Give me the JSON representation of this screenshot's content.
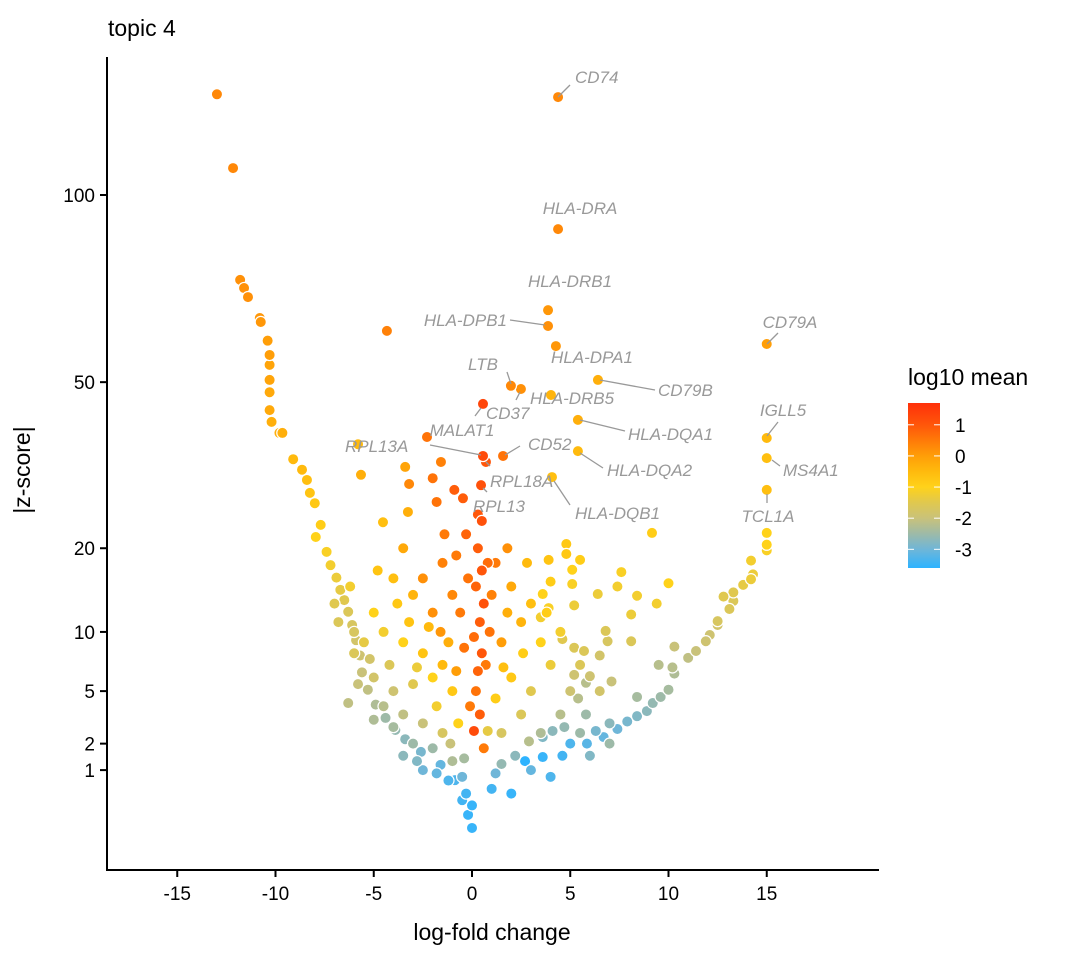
{
  "chart_data": {
    "type": "scatter",
    "title": "topic 4",
    "xlabel": "log-fold change",
    "ylabel": "|z-score|",
    "x_ticks": [
      -15,
      -10,
      -5,
      0,
      5,
      10,
      15
    ],
    "y_ticks": [
      1,
      2,
      5,
      10,
      20,
      50,
      100
    ],
    "y_scale": "sqrt",
    "xlim": [
      -18.6,
      20.7
    ],
    "ylim": [
      0,
      150
    ],
    "grid": false,
    "legend": {
      "title": "log10 mean",
      "placement": "right",
      "ticks": [
        1,
        0,
        -1,
        -2,
        -3
      ],
      "range": [
        -3.6,
        1.7
      ]
    },
    "color_scale": [
      {
        "value": -3.6,
        "color": "#2DB3FF"
      },
      {
        "value": -3.0,
        "color": "#6FB6D8"
      },
      {
        "value": -2.5,
        "color": "#9DBAA8"
      },
      {
        "value": -2.0,
        "color": "#C9C27A"
      },
      {
        "value": -1.5,
        "color": "#E0C84F"
      },
      {
        "value": -1.0,
        "color": "#FFD21A"
      },
      {
        "value": -0.5,
        "color": "#FFBA0D"
      },
      {
        "value": 0.0,
        "color": "#FF9E08"
      },
      {
        "value": 0.5,
        "color": "#FF7A08"
      },
      {
        "value": 1.0,
        "color": "#FF560A"
      },
      {
        "value": 1.7,
        "color": "#FF300A"
      }
    ],
    "labeled_points": [
      {
        "gene": "CD74",
        "x": 4.38,
        "z": 133,
        "log10_mean": 0.3
      },
      {
        "gene": "HLA-DRA",
        "x": 4.38,
        "z": 89.6,
        "log10_mean": 0.3
      },
      {
        "gene": "HLA-DRB1",
        "x": 3.87,
        "z": 67.2,
        "log10_mean": 0.1
      },
      {
        "gene": "HLA-DPB1",
        "x": 3.87,
        "z": 63.2,
        "log10_mean": 0.2
      },
      {
        "gene": "HLA-DPA1",
        "x": 4.27,
        "z": 58.3,
        "log10_mean": 0.1
      },
      {
        "gene": "CD79A",
        "x": 15.0,
        "z": 58.8,
        "log10_mean": 0.0
      },
      {
        "gene": "CD79B",
        "x": 6.41,
        "z": 50.5,
        "log10_mean": -0.3
      },
      {
        "gene": "LTB",
        "x": 1.98,
        "z": 49.2,
        "log10_mean": 0.3
      },
      {
        "gene": "HLA-DRB5",
        "x": 2.49,
        "z": 48.5,
        "log10_mean": 0.2
      },
      {
        "gene": "CD37",
        "x": 0.56,
        "z": 45.3,
        "log10_mean": 1.3
      },
      {
        "gene": "HLA-DQA1",
        "x": 5.39,
        "z": 42.0,
        "log10_mean": -0.3
      },
      {
        "gene": "MALAT1",
        "x": -2.29,
        "z": 38.6,
        "log10_mean": 0.6
      },
      {
        "gene": "IGLL5",
        "x": 15.0,
        "z": 38.4,
        "log10_mean": -0.5
      },
      {
        "gene": "RPL13A",
        "x": 0.56,
        "z": 35.0,
        "log10_mean": 1.2
      },
      {
        "gene": "CD52",
        "x": 1.58,
        "z": 35.0,
        "log10_mean": 0.6
      },
      {
        "gene": "HLA-DQA2",
        "x": 5.39,
        "z": 35.9,
        "log10_mean": -0.5
      },
      {
        "gene": "MS4A1",
        "x": 15.0,
        "z": 34.6,
        "log10_mean": -0.6
      },
      {
        "gene": "RPL18A",
        "x": 0.71,
        "z": 33.9,
        "log10_mean": 1.0
      },
      {
        "gene": "HLA-DQB1",
        "x": 4.07,
        "z": 31.2,
        "log10_mean": -0.6
      },
      {
        "gene": "RPL13",
        "x": 0.46,
        "z": 29.8,
        "log10_mean": 1.1
      },
      {
        "gene": "TCL1A",
        "x": 15.0,
        "z": 29.0,
        "log10_mean": -0.6
      }
    ],
    "points": [
      [
        -12.98,
        134,
        0.3
      ],
      [
        -12.16,
        108.6,
        0.3
      ],
      [
        -4.33,
        62,
        0.4
      ],
      [
        4.02,
        47.2,
        -0.4
      ],
      [
        -11.8,
        75.2,
        0.2
      ],
      [
        -11.6,
        73,
        0.2
      ],
      [
        -11.4,
        70.6,
        0.2
      ],
      [
        -10.8,
        65.2,
        0.1
      ],
      [
        -10.75,
        64.2,
        0.1
      ],
      [
        -10.4,
        59.6,
        0.0
      ],
      [
        -10.3,
        56.2,
        0.0
      ],
      [
        -10.3,
        53.9,
        -0.1
      ],
      [
        -10.3,
        50.5,
        -0.1
      ],
      [
        -10.3,
        47.8,
        -0.2
      ],
      [
        -10.3,
        44.0,
        -0.2
      ],
      [
        -10.2,
        41.6,
        -0.3
      ],
      [
        -9.8,
        39.4,
        -0.3
      ],
      [
        -9.65,
        39.4,
        -0.3
      ],
      [
        -9.1,
        34.4,
        -0.5
      ],
      [
        -8.65,
        32.5,
        -0.5
      ],
      [
        -8.4,
        30.7,
        -0.6
      ],
      [
        -8.25,
        28.5,
        -0.7
      ],
      [
        -8.0,
        26.8,
        -0.8
      ],
      [
        -7.7,
        23.4,
        -0.9
      ],
      [
        -7.95,
        21.6,
        -1.0
      ],
      [
        -7.4,
        19.5,
        -1.1
      ],
      [
        -7.2,
        17.7,
        -1.2
      ],
      [
        -6.9,
        16.1,
        -1.3
      ],
      [
        -6.7,
        14.6,
        -1.4
      ],
      [
        -6.5,
        13.4,
        -1.5
      ],
      [
        -6.3,
        12.1,
        -1.6
      ],
      [
        -6.1,
        10.7,
        -1.7
      ],
      [
        -5.9,
        9.2,
        -1.8
      ],
      [
        -5.7,
        7.8,
        -1.9
      ],
      [
        -5.6,
        6.4,
        -2.0
      ],
      [
        -5.3,
        5.1,
        -2.1
      ],
      [
        -4.9,
        4.1,
        -2.3
      ],
      [
        -4.4,
        3.3,
        -2.5
      ],
      [
        -3.9,
        2.65,
        -2.6
      ],
      [
        -3.4,
        2.2,
        -2.7
      ],
      [
        -2.6,
        1.65,
        -2.9
      ],
      [
        -1.6,
        1.17,
        -3.1
      ],
      [
        -0.87,
        0.71,
        -3.3
      ],
      [
        -0.5,
        0.28,
        -3.4
      ],
      [
        -0.2,
        0.09,
        -3.5
      ],
      [
        0.0,
        0.009,
        -3.5
      ],
      [
        15.0,
        22.2,
        -1.0
      ],
      [
        15.0,
        20.5,
        -1.0
      ],
      [
        15.0,
        19.7,
        -1.1
      ],
      [
        14.2,
        18.3,
        -1.2
      ],
      [
        14.3,
        16.5,
        -1.3
      ],
      [
        14.2,
        15.9,
        -1.3
      ],
      [
        13.8,
        15.2,
        -1.4
      ],
      [
        13.3,
        14.3,
        -1.5
      ],
      [
        12.8,
        13.8,
        -1.5
      ],
      [
        13.3,
        13.3,
        -1.6
      ],
      [
        13.1,
        12.4,
        -1.6
      ],
      [
        12.5,
        11.1,
        -1.7
      ],
      [
        12.5,
        10.7,
        -1.8
      ],
      [
        12.1,
        9.7,
        -1.9
      ],
      [
        11.9,
        9.1,
        -1.9
      ],
      [
        11.4,
        8.2,
        -2.0
      ],
      [
        11.0,
        7.6,
        -2.1
      ],
      [
        10.3,
        8.6,
        -2.0
      ],
      [
        10.2,
        6.8,
        -2.2
      ],
      [
        10.3,
        6.3,
        -2.3
      ],
      [
        9.5,
        7.0,
        -2.2
      ],
      [
        10.0,
        5.1,
        -2.4
      ],
      [
        9.6,
        4.6,
        -2.5
      ],
      [
        9.2,
        4.2,
        -2.6
      ],
      [
        8.9,
        3.7,
        -2.7
      ],
      [
        8.4,
        3.4,
        -2.8
      ],
      [
        7.9,
        3.1,
        -2.9
      ],
      [
        7.4,
        2.7,
        -3.0
      ],
      [
        6.7,
        2.3,
        -3.1
      ],
      [
        5.85,
        2.0,
        -3.2
      ],
      [
        5.0,
        2.0,
        -3.3
      ],
      [
        4.6,
        1.5,
        -3.4
      ],
      [
        3.6,
        1.45,
        -3.5
      ],
      [
        2.7,
        1.3,
        -3.6
      ],
      [
        9.16,
        22.2,
        -0.9
      ],
      [
        10.0,
        15.4,
        -1.0
      ],
      [
        9.4,
        13.0,
        -1.2
      ],
      [
        8.1,
        11.8,
        -1.3
      ],
      [
        8.1,
        9.1,
        -1.6
      ],
      [
        8.4,
        13.9,
        -1.2
      ],
      [
        7.6,
        16.8,
        -1.1
      ],
      [
        7.4,
        15.0,
        -1.2
      ],
      [
        6.4,
        14.1,
        -1.3
      ],
      [
        5.5,
        18.4,
        -0.9
      ],
      [
        5.1,
        17.1,
        -1.0
      ],
      [
        5.1,
        15.3,
        -1.1
      ],
      [
        5.2,
        12.8,
        -1.3
      ],
      [
        6.8,
        10.1,
        -1.6
      ],
      [
        6.9,
        9.1,
        -1.7
      ],
      [
        6.5,
        7.8,
        -1.8
      ],
      [
        7.1,
        5.7,
        -2.0
      ],
      [
        8.4,
        4.6,
        -2.4
      ],
      [
        7.0,
        3.0,
        -2.7
      ],
      [
        6.3,
        2.6,
        -2.9
      ],
      [
        5.8,
        5.6,
        -2.2
      ],
      [
        5.8,
        3.5,
        -2.5
      ],
      [
        4.8,
        20.6,
        -0.8
      ],
      [
        4.8,
        19.2,
        -0.8
      ],
      [
        3.9,
        18.4,
        -0.7
      ],
      [
        4.0,
        15.6,
        -0.9
      ],
      [
        3.6,
        14.1,
        -1.0
      ],
      [
        3.9,
        12.5,
        -1.1
      ],
      [
        3.5,
        11.5,
        -1.2
      ],
      [
        4.6,
        9.3,
        -1.5
      ],
      [
        5.2,
        8.5,
        -1.6
      ],
      [
        5.7,
        8.2,
        -1.6
      ],
      [
        5.2,
        6.2,
        -1.9
      ],
      [
        6.0,
        6.1,
        -1.9
      ],
      [
        5.4,
        4.5,
        -2.2
      ],
      [
        4.7,
        2.8,
        -2.6
      ],
      [
        4.1,
        2.6,
        -2.7
      ],
      [
        3.6,
        2.3,
        -2.8
      ],
      [
        -5.65,
        31.6,
        -0.3
      ],
      [
        -5.8,
        37.2,
        -0.5
      ],
      [
        -3.4,
        33.0,
        -0.1
      ],
      [
        -1.58,
        33.9,
        0.4
      ],
      [
        -0.46,
        27.6,
        0.9
      ],
      [
        -4.53,
        23.8,
        -0.6
      ],
      [
        -3.26,
        25.4,
        -0.3
      ],
      [
        -1.8,
        27,
        0.6
      ],
      [
        -2.0,
        31,
        0.6
      ],
      [
        -0.9,
        29,
        0.9
      ],
      [
        0.3,
        20,
        0.9
      ],
      [
        0.5,
        17,
        1.0
      ],
      [
        0.2,
        15,
        0.8
      ],
      [
        0.6,
        13,
        1.1
      ],
      [
        0.4,
        11,
        0.9
      ],
      [
        0.1,
        9.5,
        0.7
      ],
      [
        0.5,
        8,
        1.0
      ],
      [
        0.3,
        6.5,
        0.8
      ],
      [
        0.2,
        5,
        0.6
      ],
      [
        0.4,
        3.5,
        0.9
      ],
      [
        0.1,
        2.6,
        1.2
      ],
      [
        0.6,
        1.8,
        0.5
      ],
      [
        0.3,
        25,
        1.0
      ],
      [
        0.5,
        24,
        1.1
      ],
      [
        -0.3,
        22,
        0.8
      ],
      [
        0.8,
        18,
        0.7
      ],
      [
        -0.2,
        16,
        0.6
      ],
      [
        1.0,
        14,
        0.4
      ],
      [
        -0.6,
        12,
        0.5
      ],
      [
        0.9,
        10,
        0.6
      ],
      [
        -0.4,
        8.5,
        0.6
      ],
      [
        0.7,
        7,
        0.5
      ],
      [
        -0.1,
        4,
        0.5
      ],
      [
        -1.5,
        18,
        0.4
      ],
      [
        -1.0,
        14,
        0.3
      ],
      [
        -2.0,
        12,
        0.2
      ],
      [
        -1.6,
        10,
        0.1
      ],
      [
        -2.5,
        16,
        0.2
      ],
      [
        -1.4,
        22,
        0.5
      ],
      [
        -3.2,
        30,
        0.3
      ],
      [
        -4,
        16,
        -0.6
      ],
      [
        -3,
        14,
        -0.4
      ],
      [
        -5,
        12,
        -1.0
      ],
      [
        -4.5,
        10,
        -1.2
      ],
      [
        -3.5,
        9,
        -1.0
      ],
      [
        -2.5,
        8,
        -0.7
      ],
      [
        -1.5,
        7,
        -0.5
      ],
      [
        -5.5,
        9,
        -1.4
      ],
      [
        -6,
        8,
        -1.6
      ],
      [
        -5,
        6,
        -1.8
      ],
      [
        -4,
        5,
        -1.9
      ],
      [
        -3,
        5.5,
        -1.5
      ],
      [
        -2,
        6,
        -1.0
      ],
      [
        -1,
        5,
        -0.8
      ],
      [
        -3.5,
        3.5,
        -2.1
      ],
      [
        -2.5,
        3,
        -2.0
      ],
      [
        -1.5,
        2.5,
        -1.7
      ],
      [
        -4.5,
        4,
        -2.2
      ],
      [
        -2,
        1.8,
        -2.5
      ],
      [
        -1,
        1.3,
        -2.3
      ],
      [
        -3,
        2,
        -2.5
      ],
      [
        -0.5,
        0.8,
        -3.0
      ],
      [
        -1.2,
        0.7,
        -3.3
      ],
      [
        -0.3,
        0.4,
        -3.4
      ],
      [
        0,
        0.2,
        -3.5
      ],
      [
        2,
        15,
        -0.2
      ],
      [
        3,
        13,
        -0.6
      ],
      [
        2.5,
        11,
        -0.4
      ],
      [
        1.5,
        9,
        0.0
      ],
      [
        3.5,
        9,
        -1.0
      ],
      [
        4,
        7,
        -1.3
      ],
      [
        2,
        6,
        -0.8
      ],
      [
        3,
        5,
        -1.5
      ],
      [
        5,
        5,
        -1.9
      ],
      [
        4.5,
        3.5,
        -2.2
      ],
      [
        2.5,
        3.5,
        -1.6
      ],
      [
        1.5,
        2.5,
        -1.7
      ],
      [
        3.5,
        2.5,
        -2.3
      ],
      [
        5.5,
        2.5,
        -2.5
      ],
      [
        2.2,
        1.5,
        -2.7
      ],
      [
        1.2,
        0.9,
        -3.0
      ],
      [
        3,
        1,
        -3.1
      ],
      [
        4,
        0.8,
        -3.3
      ],
      [
        1,
        0.5,
        -3.4
      ],
      [
        2,
        0.4,
        -3.5
      ],
      [
        6,
        1.5,
        -2.8
      ],
      [
        7,
        2,
        -2.5
      ],
      [
        6.5,
        5,
        -1.8
      ],
      [
        5.5,
        7,
        -1.6
      ],
      [
        4.5,
        10,
        -1.2
      ],
      [
        3.8,
        12,
        -0.9
      ],
      [
        1.8,
        20,
        0.2
      ],
      [
        1.2,
        18,
        0.5
      ],
      [
        2.8,
        18,
        -0.5
      ],
      [
        -0.8,
        19,
        0.5
      ],
      [
        -3.5,
        20,
        -0.2
      ],
      [
        -4.8,
        17,
        -0.7
      ],
      [
        -6.2,
        15,
        -1.2
      ],
      [
        -7,
        13,
        -1.5
      ],
      [
        -6.8,
        11,
        -1.6
      ],
      [
        -6,
        10,
        -1.7
      ],
      [
        -5.2,
        7.5,
        -1.8
      ],
      [
        -5.8,
        5.5,
        -2.0
      ],
      [
        -6.3,
        4.2,
        -2.1
      ],
      [
        -4,
        2.8,
        -2.4
      ],
      [
        -5,
        3.2,
        -2.3
      ],
      [
        -2.8,
        1.3,
        -2.8
      ],
      [
        -3.5,
        1.5,
        -2.7
      ],
      [
        -1.8,
        0.9,
        -3.1
      ],
      [
        -2.5,
        1,
        -3.0
      ],
      [
        -3.8,
        13,
        -0.8
      ],
      [
        -2.2,
        10.5,
        -0.5
      ],
      [
        -1.2,
        9,
        -0.3
      ],
      [
        -0.8,
        6.5,
        0.0
      ],
      [
        -1.8,
        4,
        -1.2
      ],
      [
        -0.7,
        3,
        -1.0
      ],
      [
        -2.8,
        6.8,
        -1.3
      ],
      [
        -4.2,
        7,
        -1.6
      ],
      [
        -3.2,
        11,
        -0.7
      ],
      [
        1.8,
        12,
        -0.3
      ],
      [
        2.6,
        8,
        -0.9
      ],
      [
        1.2,
        4.5,
        -0.9
      ],
      [
        2.9,
        2.1,
        -2.2
      ],
      [
        1.6,
        6.8,
        -0.6
      ],
      [
        -1.1,
        2,
        -2.0
      ],
      [
        0.8,
        2.6,
        -1.4
      ],
      [
        -0.4,
        1.4,
        -2.4
      ],
      [
        1.5,
        1.2,
        -2.6
      ]
    ]
  }
}
